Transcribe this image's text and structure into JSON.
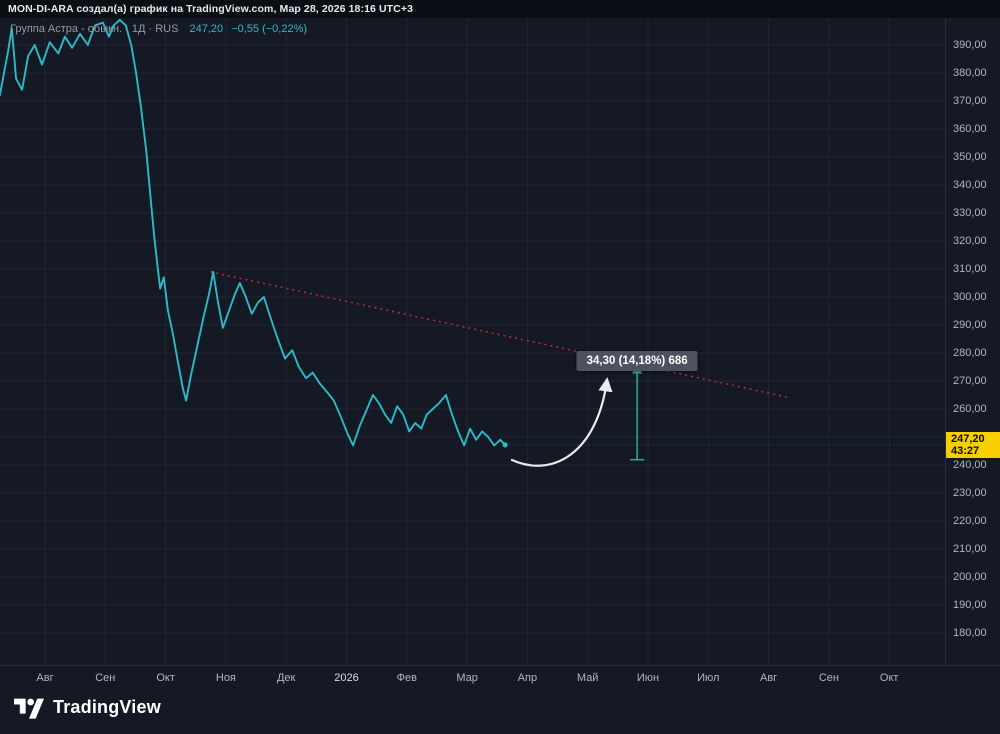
{
  "attribution": {
    "text": "MON-DI-ARA создал(а) график на TradingView.com, Мар 28, 2026 18:16 UTC+3"
  },
  "legend": {
    "title": "Группа Астра - обыкн. · 1Д · RUS",
    "price": "247,20",
    "change": "−0,55 (−0,22%)"
  },
  "price_axis": {
    "current": "247,20",
    "countdown": "43:27",
    "labels": [
      "390,00",
      "380,00",
      "370,00",
      "360,00",
      "350,00",
      "340,00",
      "330,00",
      "320,00",
      "310,00",
      "300,00",
      "290,00",
      "280,00",
      "270,00",
      "260,00",
      "250,00",
      "240,00",
      "230,00",
      "220,00",
      "210,00",
      "200,00",
      "190,00",
      "180,00"
    ]
  },
  "time_axis": {
    "labels": [
      "Авг",
      "Сен",
      "Окт",
      "Ноя",
      "Дек",
      "2026",
      "Фев",
      "Мар",
      "Апр",
      "Май",
      "Июн",
      "Июл",
      "Авг",
      "Сен",
      "Окт"
    ]
  },
  "footer": {
    "brand": "TradingView",
    "logo_icon": "tradingview-logo"
  },
  "colors": {
    "bg": "#141924",
    "topbar": "#0b0e14",
    "grid": "#1f2532",
    "accent": "#2cbac9",
    "trend": "#b02a3c",
    "measure": "#26a69a",
    "badge": "#f7cf00",
    "axisText": "#b2b5be",
    "drawnArrow": "#e8eaef"
  },
  "chart_data": {
    "type": "line",
    "title": "Группа Астра - обыкн. · 1Д · RUS",
    "symbol": "Группа Астра - обыкн.",
    "interval": "1Д",
    "exchange": "RUS",
    "last_price": 247.2,
    "change": -0.55,
    "change_pct": -0.22,
    "ylim": [
      180,
      390
    ],
    "y_tick_step": 10,
    "grid": true,
    "x_labels": [
      "Авг",
      "Сен",
      "Окт",
      "Ноя",
      "Дек",
      "2026",
      "Фев",
      "Мар",
      "Апр",
      "Май",
      "Июн",
      "Июл",
      "Авг",
      "Сен",
      "Окт"
    ],
    "series": [
      {
        "name": "Группа Астра close",
        "color": "#2cbac9",
        "points": [
          [
            -0.75,
            372
          ],
          [
            -0.61,
            388
          ],
          [
            -0.55,
            396
          ],
          [
            -0.48,
            378
          ],
          [
            -0.38,
            374
          ],
          [
            -0.28,
            386
          ],
          [
            -0.17,
            390
          ],
          [
            -0.05,
            383
          ],
          [
            0.08,
            391
          ],
          [
            0.22,
            387
          ],
          [
            0.33,
            393
          ],
          [
            0.45,
            389
          ],
          [
            0.58,
            394
          ],
          [
            0.71,
            390
          ],
          [
            0.83,
            397
          ],
          [
            0.96,
            398
          ],
          [
            1.06,
            393
          ],
          [
            1.14,
            397
          ],
          [
            1.24,
            399
          ],
          [
            1.34,
            397
          ],
          [
            1.43,
            390
          ],
          [
            1.51,
            380
          ],
          [
            1.59,
            368
          ],
          [
            1.68,
            352
          ],
          [
            1.74,
            338
          ],
          [
            1.81,
            322
          ],
          [
            1.86,
            312
          ],
          [
            1.91,
            303
          ],
          [
            1.97,
            307
          ],
          [
            2.04,
            295
          ],
          [
            2.12,
            287
          ],
          [
            2.21,
            276
          ],
          [
            2.29,
            267
          ],
          [
            2.34,
            263
          ],
          [
            2.42,
            272
          ],
          [
            2.52,
            282
          ],
          [
            2.62,
            292
          ],
          [
            2.72,
            301
          ],
          [
            2.79,
            309
          ],
          [
            2.87,
            298
          ],
          [
            2.95,
            289
          ],
          [
            3.05,
            295
          ],
          [
            3.15,
            301
          ],
          [
            3.23,
            305
          ],
          [
            3.33,
            300
          ],
          [
            3.43,
            294
          ],
          [
            3.53,
            298
          ],
          [
            3.63,
            300
          ],
          [
            3.75,
            292
          ],
          [
            3.86,
            285
          ],
          [
            3.98,
            278
          ],
          [
            4.1,
            281
          ],
          [
            4.21,
            275
          ],
          [
            4.33,
            271
          ],
          [
            4.44,
            273
          ],
          [
            4.56,
            269
          ],
          [
            4.68,
            266
          ],
          [
            4.79,
            263
          ],
          [
            4.91,
            257
          ],
          [
            5.02,
            251
          ],
          [
            5.11,
            247
          ],
          [
            5.22,
            254
          ],
          [
            5.34,
            260
          ],
          [
            5.44,
            265
          ],
          [
            5.54,
            262
          ],
          [
            5.64,
            258
          ],
          [
            5.74,
            255
          ],
          [
            5.84,
            261
          ],
          [
            5.94,
            258
          ],
          [
            6.04,
            252
          ],
          [
            6.14,
            255
          ],
          [
            6.24,
            253
          ],
          [
            6.33,
            258
          ],
          [
            6.43,
            260
          ],
          [
            6.53,
            262
          ],
          [
            6.65,
            265
          ],
          [
            6.75,
            258
          ],
          [
            6.85,
            252
          ],
          [
            6.95,
            247
          ],
          [
            7.05,
            253
          ],
          [
            7.15,
            249
          ],
          [
            7.25,
            252
          ],
          [
            7.35,
            250
          ],
          [
            7.45,
            247
          ],
          [
            7.55,
            249
          ],
          [
            7.63,
            247.2
          ]
        ]
      }
    ],
    "trendline": {
      "from": [
        2.74,
        309
      ],
      "to": [
        12.36,
        264
      ],
      "style": "dotted",
      "color": "#b02a3c"
    },
    "measurement": {
      "x": 9.82,
      "from": 241.9,
      "to": 276.2,
      "bars": 686,
      "label": "34,30 (14,18%) 686",
      "color": "#26a69a"
    }
  }
}
